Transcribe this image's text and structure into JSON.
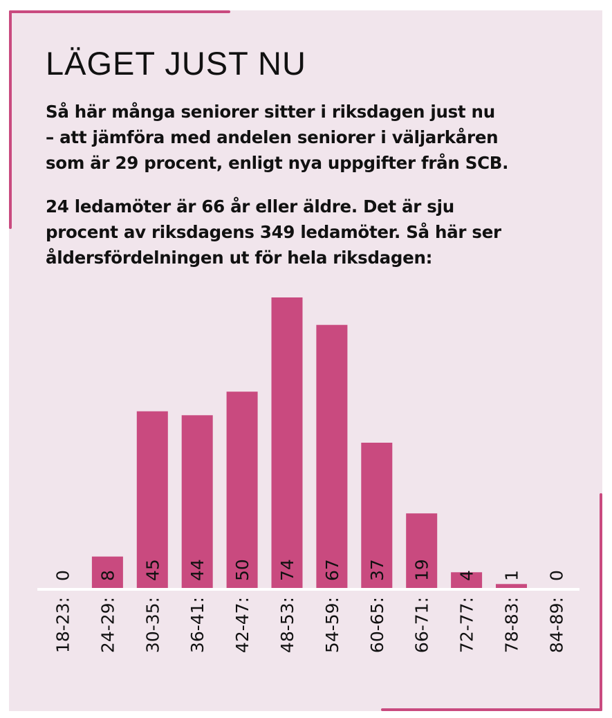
{
  "title": "LÄGET JUST NU",
  "intro_lines": [
    "Så här många seniorer sitter i riksdagen just nu",
    "– att jämföra med andelen seniorer i väljarkåren",
    "som är 29 procent, enligt nya uppgifter från SCB."
  ],
  "detail_lines": [
    "24 ledamöter är 66 år eller äldre. Det är sju",
    "procent av riksdagens 349 ledamöter. Så här ser",
    "åldersfördelningen ut för hela riksdagen:"
  ],
  "colors": {
    "accent": "#c94a7f",
    "background": "#f1e5ec",
    "baseline": "#ffffff",
    "text": "#111111"
  },
  "chart_data": {
    "type": "bar",
    "title": "",
    "xlabel": "",
    "ylabel": "",
    "categories": [
      "18-23:",
      "24-29:",
      "30-35:",
      "36-41:",
      "42-47:",
      "48-53:",
      "54-59:",
      "60-65:",
      "66-71:",
      "72-77:",
      "78-83:",
      "84-89:"
    ],
    "values": [
      0,
      8,
      45,
      44,
      50,
      74,
      67,
      37,
      19,
      4,
      1,
      0
    ],
    "value_labels": [
      "0",
      "8",
      "45",
      "44",
      "50",
      "74",
      "67",
      "37",
      "19",
      "4",
      "1",
      "0"
    ],
    "ylim": [
      0,
      74
    ],
    "grid": false,
    "legend": "none"
  }
}
